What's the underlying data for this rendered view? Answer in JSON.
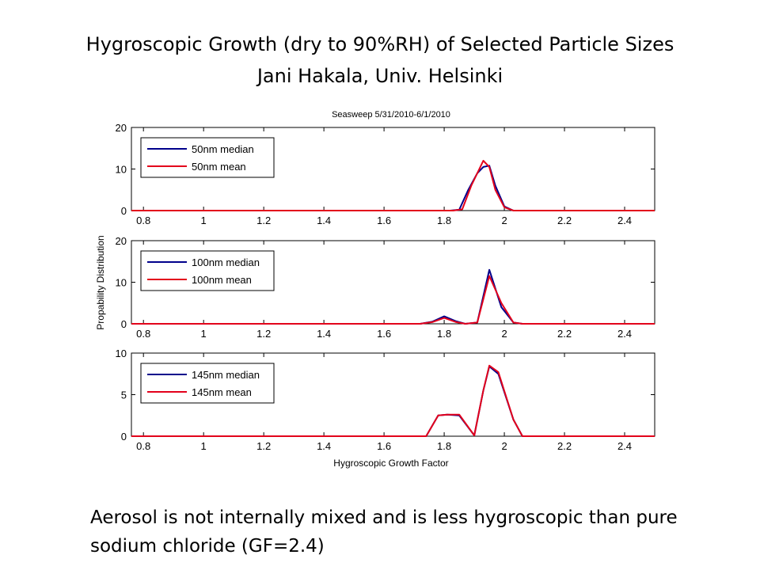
{
  "slide": {
    "title_line1": "Hygroscopic Growth (dry to 90%RH) of Selected Particle Sizes",
    "title_line2": "Jani Hakala, Univ. Helsinki",
    "note": "Aerosol is not internally mixed and is less hygroscopic than pure sodium chloride (GF=2.4)"
  },
  "colors": {
    "median": "#00008b",
    "mean": "#e3001b"
  },
  "chart_data": {
    "type": "line",
    "title": "Seasweep 5/31/2010-6/1/2010",
    "xlabel": "Hygroscopic Growth Factor",
    "ylabel": "Propability Distribution",
    "xlim": [
      0.76,
      2.5
    ],
    "xticks": [
      0.8,
      1,
      1.2,
      1.4,
      1.6,
      1.8,
      2,
      2.2,
      2.4
    ],
    "xtick_labels": [
      "0.8",
      "1",
      "1.2",
      "1.4",
      "1.6",
      "1.8",
      "2",
      "2.2",
      "2.4"
    ],
    "grid": false,
    "legend_position": "top-left",
    "panels": [
      {
        "ylim": [
          0,
          20
        ],
        "yticks": [
          0,
          10,
          20
        ],
        "ytick_labels": [
          "0",
          "10",
          "20"
        ],
        "series": [
          {
            "name": "50nm median",
            "color": "#00008b",
            "x": [
              0.76,
              1.82,
              1.85,
              1.88,
              1.91,
              1.93,
              1.95,
              1.97,
              2.0,
              2.03,
              2.5
            ],
            "y": [
              0,
              0,
              0.2,
              5,
              9,
              10.5,
              10.8,
              6,
              1,
              0,
              0
            ]
          },
          {
            "name": "50nm mean",
            "color": "#e3001b",
            "x": [
              0.76,
              1.83,
              1.86,
              1.89,
              1.92,
              1.93,
              1.95,
              1.97,
              2.0,
              2.03,
              2.5
            ],
            "y": [
              0,
              0,
              0.3,
              6,
              10.5,
              12,
              10.5,
              5,
              0.8,
              0,
              0
            ]
          }
        ]
      },
      {
        "ylim": [
          0,
          20
        ],
        "yticks": [
          0,
          10,
          20
        ],
        "ytick_labels": [
          "0",
          "10",
          "20"
        ],
        "series": [
          {
            "name": "100nm median",
            "color": "#00008b",
            "x": [
              0.76,
              1.72,
              1.76,
              1.8,
              1.84,
              1.87,
              1.91,
              1.95,
              1.99,
              2.03,
              2.06,
              2.5
            ],
            "y": [
              0,
              0,
              0.5,
              1.8,
              0.6,
              0,
              0.3,
              13,
              4,
              0.3,
              0,
              0
            ]
          },
          {
            "name": "100nm mean",
            "color": "#e3001b",
            "x": [
              0.76,
              1.72,
              1.76,
              1.8,
              1.84,
              1.87,
              1.91,
              1.95,
              1.99,
              2.03,
              2.06,
              2.5
            ],
            "y": [
              0,
              0,
              0.4,
              1.4,
              0.4,
              0,
              0.3,
              11.5,
              5,
              0.3,
              0,
              0
            ]
          }
        ]
      },
      {
        "ylim": [
          0,
          10
        ],
        "yticks": [
          0,
          5,
          10
        ],
        "ytick_labels": [
          "0",
          "5",
          "10"
        ],
        "series": [
          {
            "name": "145nm median",
            "color": "#00008b",
            "x": [
              0.76,
              1.74,
              1.78,
              1.81,
              1.85,
              1.9,
              1.93,
              1.95,
              1.98,
              2.03,
              2.06,
              2.5
            ],
            "y": [
              0,
              0,
              2.5,
              2.6,
              2.5,
              0.1,
              5.5,
              8.4,
              7.5,
              2,
              0,
              0
            ]
          },
          {
            "name": "145nm mean",
            "color": "#e3001b",
            "x": [
              0.76,
              1.74,
              1.78,
              1.81,
              1.85,
              1.9,
              1.93,
              1.95,
              1.98,
              2.03,
              2.06,
              2.5
            ],
            "y": [
              0,
              0,
              2.5,
              2.6,
              2.6,
              0.1,
              5.5,
              8.5,
              7.7,
              2,
              0,
              0
            ]
          }
        ]
      }
    ]
  }
}
